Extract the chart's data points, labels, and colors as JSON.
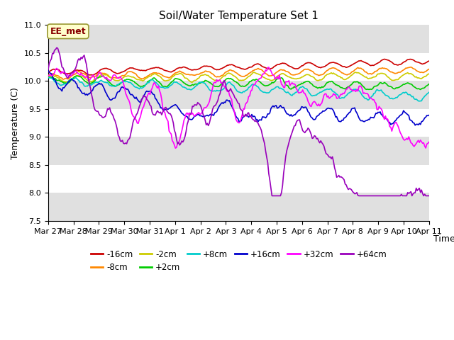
{
  "title": "Soil/Water Temperature Set 1",
  "xlabel": "Time",
  "ylabel": "Temperature (C)",
  "ylim": [
    7.5,
    11.0
  ],
  "date_labels": [
    "Mar 27",
    "Mar 28",
    "Mar 29",
    "Mar 30",
    "Mar 31",
    "Apr 1",
    "Apr 2",
    "Apr 3",
    "Apr 4",
    "Apr 5",
    "Apr 6",
    "Apr 7",
    "Apr 8",
    "Apr 9",
    "Apr 10",
    "Apr 11"
  ],
  "legend_entries": [
    "-16cm",
    "-8cm",
    "-2cm",
    "+2cm",
    "+8cm",
    "+16cm",
    "+32cm",
    "+64cm"
  ],
  "series_colors": [
    "#cc0000",
    "#ff8800",
    "#cccc00",
    "#00cc00",
    "#00cccc",
    "#0000cc",
    "#ff00ff",
    "#9900bb"
  ],
  "annotation_text": "EE_met",
  "annotation_color": "#880000",
  "annotation_bg": "#ffffcc",
  "background_color": "#ffffff",
  "band_color": "#e0e0e0",
  "title_fontsize": 11,
  "n_days": 15,
  "n_pts_per_day": 24
}
